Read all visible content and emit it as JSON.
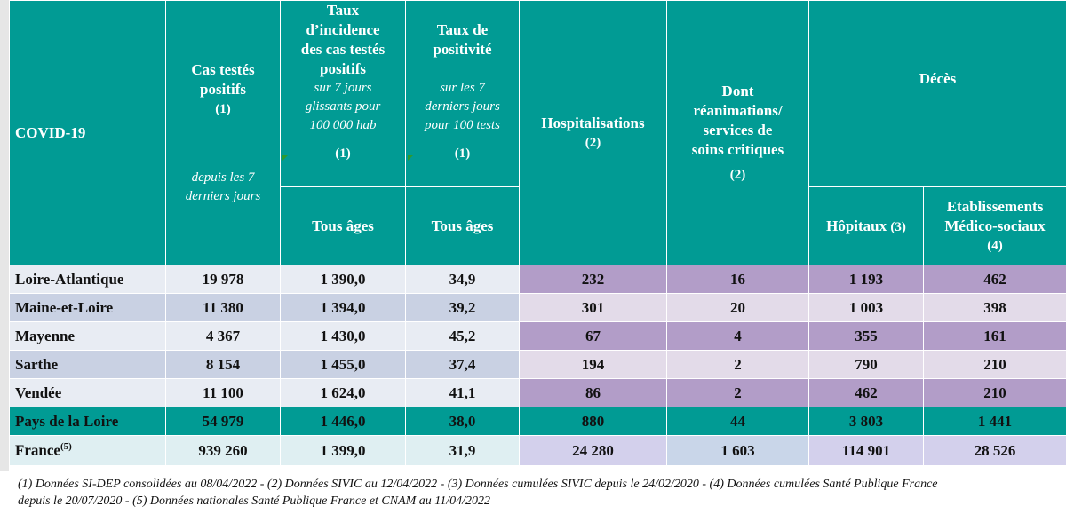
{
  "title": "COVID-19",
  "headers": {
    "cas_testes": {
      "line1": "Cas testés",
      "line2": "positifs",
      "ref": "(1)",
      "sub1": "depuis les 7",
      "sub2": "derniers jours"
    },
    "taux_incidence": {
      "line1": "Taux",
      "line2": "d’incidence",
      "line3": "des cas testés",
      "line4": "positifs",
      "sub1": "sur 7 jours",
      "sub2": "glissants pour",
      "sub3": "100 000 hab",
      "ref": "(1)",
      "age": "Tous âges"
    },
    "taux_positivite": {
      "line1": "Taux de",
      "line2": "positivité",
      "sub1": "sur les 7",
      "sub2": "derniers jours",
      "sub3": "pour 100 tests",
      "ref": "(1)",
      "age": "Tous âges"
    },
    "hospitalisations": {
      "line1": "Hospitalisations",
      "ref": "(2)"
    },
    "reanimations": {
      "line1": "Dont",
      "line2": "réanimations/",
      "line3": "services de",
      "line4": "soins critiques",
      "ref": "(2)"
    },
    "deces": {
      "label": "Décès",
      "hopitaux": "Hôpitaux",
      "hopitaux_ref": "(3)",
      "ems1": "Etablissements",
      "ems2": "Médico-sociaux",
      "ems_ref": "(4)"
    }
  },
  "rows": [
    {
      "name": "Loire-Atlantique",
      "cas": "19 978",
      "incidence": "1 390,0",
      "positivite": "34,9",
      "hosp": "232",
      "rea": "16",
      "dec_hop": "1 193",
      "dec_ems": "462"
    },
    {
      "name": "Maine-et-Loire",
      "cas": "11 380",
      "incidence": "1 394,0",
      "positivite": "39,2",
      "hosp": "301",
      "rea": "20",
      "dec_hop": "1 003",
      "dec_ems": "398"
    },
    {
      "name": "Mayenne",
      "cas": "4 367",
      "incidence": "1 430,0",
      "positivite": "45,2",
      "hosp": "67",
      "rea": "4",
      "dec_hop": "355",
      "dec_ems": "161"
    },
    {
      "name": "Sarthe",
      "cas": "8 154",
      "incidence": "1 455,0",
      "positivite": "37,4",
      "hosp": "194",
      "rea": "2",
      "dec_hop": "790",
      "dec_ems": "210"
    },
    {
      "name": "Vendée",
      "cas": "11 100",
      "incidence": "1 624,0",
      "positivite": "41,1",
      "hosp": "86",
      "rea": "2",
      "dec_hop": "462",
      "dec_ems": "210"
    }
  ],
  "region": {
    "name": "Pays de la Loire",
    "cas": "54 979",
    "incidence": "1 446,0",
    "positivite": "38,0",
    "hosp": "880",
    "rea": "44",
    "dec_hop": "3 803",
    "dec_ems": "1 441"
  },
  "france": {
    "name": "France",
    "sup": "(5)",
    "cas": "939 260",
    "incidence": "1 399,0",
    "positivite": "31,9",
    "hosp": "24 280",
    "rea": "1 603",
    "dec_hop": "114 901",
    "dec_ems": "28 526"
  },
  "footnote": {
    "line1": "(1) Données SI-DEP consolidées au 08/04/2022 -  (2) Données SIVIC au 12/04/2022 - (3) Données cumulées SIVIC depuis le 24/02/2020 - (4) Données cumulées Santé Publique France",
    "line2": "depuis le 20/07/2020 - (5) Données nationales Santé Publique France et CNAM au 11/04/2022"
  }
}
